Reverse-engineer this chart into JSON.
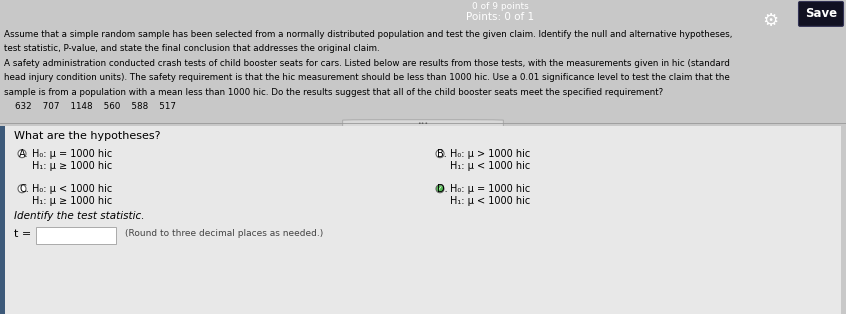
{
  "bg_blue": "#3d5a7a",
  "bg_light": "#c8c8c8",
  "bg_white_area": "#e0e0e0",
  "save_btn_bg": "#1a1a2e",
  "header_lines": [
    "Assume that a simple random sample has been selected from a normally distributed population and test the given claim. Identify the null and alternative hypotheses,",
    "test statistic, P-value, and state the final conclusion that addresses the original claim.",
    "A safety administration conducted crash tests of child booster seats for cars. Listed below are results from those tests, with the measurements given in hic (standard",
    "head injury condition units). The safety requirement is that the hic measurement should be less than 1000 hic. Use a 0.01 significance level to test the claim that the",
    "sample is from a population with a mean less than 1000 hic. Do the results suggest that all of the child booster seats meet the specified requirement?",
    "    632    707    1148    560    588    517"
  ],
  "points_partial": "0 of 9 points",
  "points_full": "Points: 0 of 1",
  "save_label": "Save",
  "question": "What are the hypotheses?",
  "optA_line1": "H₀: μ = 1000 hic",
  "optA_line2": "H₁: μ ≥ 1000 hic",
  "optB_line1": "H₀: μ > 1000 hic",
  "optB_line2": "H₁: μ < 1000 hic",
  "optC_line1": "H₀: μ < 1000 hic",
  "optC_line2": "H₁: μ ≥ 1000 hic",
  "optD_line1": "H₀: μ = 1000 hic",
  "optD_line2": "H₁: μ < 1000 hic",
  "identify_test": "Identify the test statistic.",
  "t_label": "t =",
  "round_note": "(Round to three decimal places as needed.)"
}
